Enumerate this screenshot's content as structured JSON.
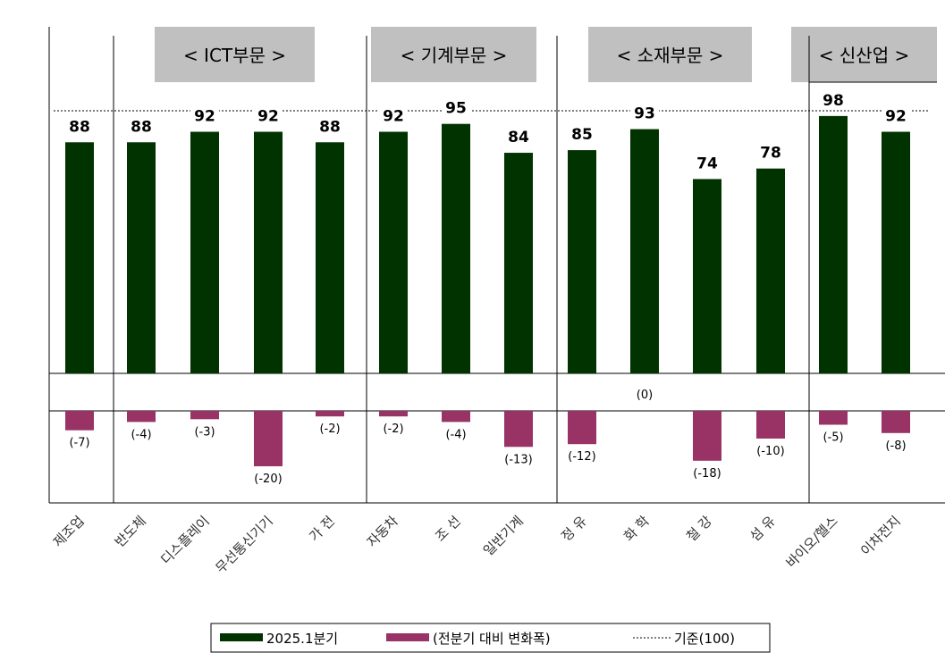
{
  "chart_data": {
    "type": "bar",
    "categories": [
      "제조업",
      "반도체",
      "디스플레이",
      "무선통신기기",
      "가 전",
      "자동차",
      "조 선",
      "일반기계",
      "정 유",
      "화 학",
      "철 강",
      "섬 유",
      "바이오/헬스",
      "이차전지"
    ],
    "series": [
      {
        "name": "2025.1분기",
        "values": [
          88,
          88,
          92,
          92,
          88,
          92,
          95,
          84,
          85,
          93,
          74,
          78,
          98,
          92
        ],
        "color": "#003300"
      },
      {
        "name": "(전분기 대비 변화폭)",
        "values": [
          -7,
          -4,
          -3,
          -20,
          -2,
          -2,
          -4,
          -13,
          -12,
          0,
          -18,
          -10,
          -5,
          -8
        ],
        "color": "#993366"
      }
    ],
    "value_labels": [
      "88",
      "88",
      "92",
      "92",
      "88",
      "92",
      "95",
      "84",
      "85",
      "93",
      "74",
      "78",
      "98",
      "92"
    ],
    "change_labels": [
      "(-7)",
      "(-4)",
      "(-3)",
      "(-20)",
      "(-2)",
      "(-2)",
      "(-4)",
      "(-13)",
      "(-12)",
      "(0)",
      "(-18)",
      "(-10)",
      "(-5)",
      "(-8)"
    ],
    "reference": {
      "name": "기준(100)",
      "value": 100,
      "style": "dashed"
    },
    "sectors": [
      {
        "label": "< ICT부문 >",
        "first": 1,
        "last": 4
      },
      {
        "label": "< 기계부문 >",
        "first": 5,
        "last": 7
      },
      {
        "label": "< 소재부문 >",
        "first": 8,
        "last": 11
      },
      {
        "label": "< 신산업 >",
        "first": 12,
        "last": 13
      }
    ],
    "legend": [
      "2025.1분기",
      "(전분기 대비 변화폭)",
      "기준(100)"
    ],
    "legend_position": "bottom",
    "grid": false
  }
}
